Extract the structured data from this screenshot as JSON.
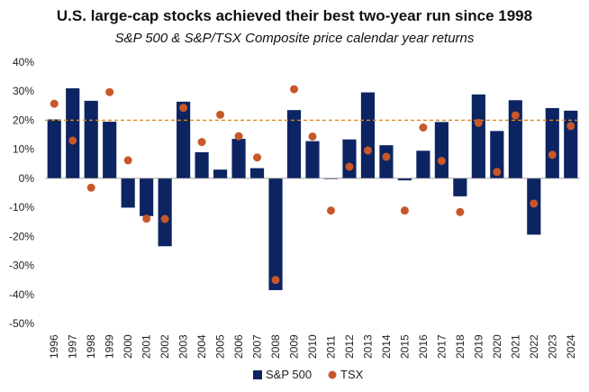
{
  "chart_data": {
    "type": "bar",
    "title": "U.S. large-cap stocks achieved their best two-year run since 1998",
    "subtitle": "S&P 500 & S&P/TSX Composite price calendar year returns",
    "categories": [
      "1996",
      "1997",
      "1998",
      "1999",
      "2000",
      "2001",
      "2002",
      "2003",
      "2004",
      "2005",
      "2006",
      "2007",
      "2008",
      "2009",
      "2010",
      "2011",
      "2012",
      "2013",
      "2014",
      "2015",
      "2016",
      "2017",
      "2018",
      "2019",
      "2020",
      "2021",
      "2022",
      "2023",
      "2024"
    ],
    "series": [
      {
        "name": "S&P 500",
        "type": "bar",
        "color": "#0c2461",
        "values": [
          20.3,
          31.0,
          26.7,
          19.5,
          -10.1,
          -13.0,
          -23.4,
          26.4,
          9.0,
          3.0,
          13.6,
          3.5,
          -38.5,
          23.5,
          12.8,
          0.0,
          13.4,
          29.6,
          11.4,
          -0.7,
          9.5,
          19.4,
          -6.2,
          28.9,
          16.3,
          26.9,
          -19.4,
          24.2,
          23.3
        ]
      },
      {
        "name": "TSX",
        "type": "scatter",
        "color": "#c8572a",
        "values": [
          25.7,
          13.0,
          -3.2,
          29.7,
          6.2,
          -13.9,
          -14.0,
          24.3,
          12.5,
          21.9,
          14.5,
          7.2,
          -35.0,
          30.7,
          14.4,
          -11.1,
          4.0,
          9.6,
          7.4,
          -11.1,
          17.5,
          6.0,
          -11.6,
          19.1,
          2.2,
          21.7,
          -8.7,
          8.1,
          18.0
        ]
      }
    ],
    "reference_line": {
      "value": 20,
      "color": "#d98a1e",
      "style": "dashed"
    },
    "ylim": [
      -50,
      40
    ],
    "yticks": [
      -50,
      -40,
      -30,
      -20,
      -10,
      0,
      10,
      20,
      30,
      40
    ],
    "ytick_labels": [
      "-50%",
      "-40%",
      "-30%",
      "-20%",
      "-10%",
      "0%",
      "10%",
      "20%",
      "30%",
      "40%"
    ],
    "xlabel": "",
    "ylabel": "",
    "grid": false,
    "legend_position": "bottom"
  }
}
